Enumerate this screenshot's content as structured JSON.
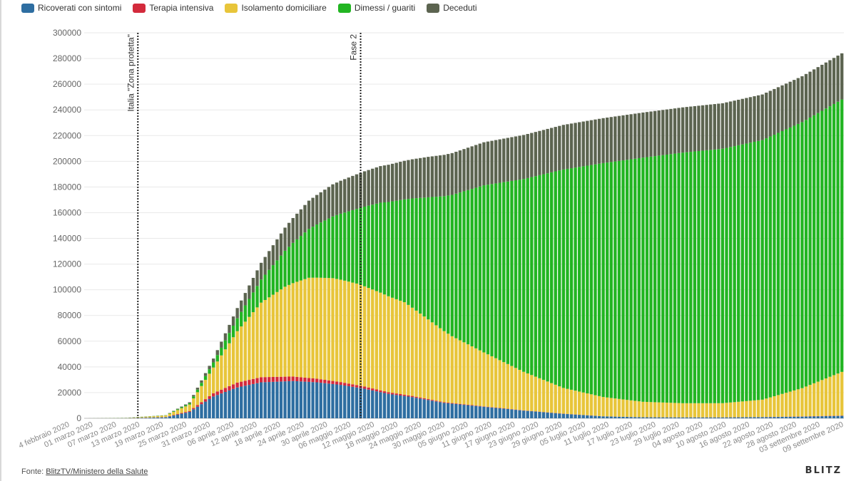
{
  "legend": {
    "items": [
      {
        "label": "Ricoverati con sintomi",
        "color": "#2e6ea1"
      },
      {
        "label": "Terapia intensiva",
        "color": "#d32a3c"
      },
      {
        "label": "Isolamento domiciliare",
        "color": "#e8c53a"
      },
      {
        "label": "Dimessi / guariti",
        "color": "#22b522"
      },
      {
        "label": "Deceduti",
        "color": "#5c6450"
      }
    ]
  },
  "source": {
    "prefix": "Fonte: ",
    "link_text": "BlitzTV/Ministero della Salute"
  },
  "logo": "BLITZ",
  "chart_data": {
    "type": "bar",
    "stacked": true,
    "x_tick_labels": [
      "4 febbraio 2020",
      "01 marzo 2020",
      "07 marzo 2020",
      "13 marzo 2020",
      "19 marzo 2020",
      "25 marzo 2020",
      "31 marzo 2020",
      "06 aprile 2020",
      "12 aprile 2020",
      "18 aprile 2020",
      "24 aprile 2020",
      "30 aprile 2020",
      "06 maggio 2020",
      "12 maggio 2020",
      "18 maggio 2020",
      "24 maggio 2020",
      "30 maggio 2020",
      "05 giugno 2020",
      "11 giugno 2020",
      "17 giugno 2020",
      "23 giugno 2020",
      "29 giugno 2020",
      "05 luglio 2020",
      "11 luglio 2020",
      "17 luglio 2020",
      "23 luglio 2020",
      "29 luglio 2020",
      "04 agosto 2020",
      "10 agosto 2020",
      "16 agosto 2020",
      "22 agosto 2020",
      "28 agosto 2020",
      "03 settembre 2020",
      "09 settembre 2020"
    ],
    "y_ticks": [
      0,
      20000,
      40000,
      60000,
      80000,
      100000,
      120000,
      140000,
      160000,
      180000,
      200000,
      220000,
      240000,
      260000,
      280000,
      300000
    ],
    "ylim": [
      0,
      300000
    ],
    "grid": true,
    "bar_count": 191,
    "anchors": {
      "ricoverati": [
        [
          0,
          0
        ],
        [
          10,
          100
        ],
        [
          20,
          800
        ],
        [
          26,
          5000
        ],
        [
          32,
          17000
        ],
        [
          38,
          24000
        ],
        [
          44,
          28000
        ],
        [
          52,
          29000
        ],
        [
          58,
          28000
        ],
        [
          64,
          26000
        ],
        [
          70,
          23000
        ],
        [
          76,
          19000
        ],
        [
          82,
          16500
        ],
        [
          90,
          12000
        ],
        [
          100,
          9000
        ],
        [
          110,
          6000
        ],
        [
          120,
          3500
        ],
        [
          130,
          1500
        ],
        [
          140,
          800
        ],
        [
          150,
          700
        ],
        [
          160,
          700
        ],
        [
          170,
          900
        ],
        [
          180,
          1300
        ],
        [
          190,
          1900
        ]
      ],
      "terapia": [
        [
          0,
          0
        ],
        [
          10,
          30
        ],
        [
          20,
          150
        ],
        [
          26,
          700
        ],
        [
          32,
          2500
        ],
        [
          38,
          3800
        ],
        [
          44,
          4000
        ],
        [
          52,
          3500
        ],
        [
          58,
          2800
        ],
        [
          64,
          2200
        ],
        [
          70,
          1700
        ],
        [
          76,
          1300
        ],
        [
          82,
          900
        ],
        [
          90,
          500
        ],
        [
          100,
          300
        ],
        [
          110,
          180
        ],
        [
          120,
          120
        ],
        [
          130,
          70
        ],
        [
          140,
          40
        ],
        [
          150,
          45
        ],
        [
          160,
          60
        ],
        [
          170,
          90
        ],
        [
          180,
          160
        ],
        [
          190,
          210
        ]
      ],
      "isolamento": [
        [
          0,
          0
        ],
        [
          10,
          100
        ],
        [
          20,
          1200
        ],
        [
          26,
          5000
        ],
        [
          32,
          20000
        ],
        [
          38,
          40000
        ],
        [
          44,
          58000
        ],
        [
          50,
          70000
        ],
        [
          56,
          78000
        ],
        [
          62,
          80000
        ],
        [
          68,
          79000
        ],
        [
          74,
          76000
        ],
        [
          80,
          72000
        ],
        [
          86,
          62000
        ],
        [
          92,
          52000
        ],
        [
          100,
          42000
        ],
        [
          110,
          30000
        ],
        [
          120,
          20000
        ],
        [
          130,
          15000
        ],
        [
          140,
          12000
        ],
        [
          150,
          11000
        ],
        [
          160,
          11000
        ],
        [
          170,
          13500
        ],
        [
          180,
          22000
        ],
        [
          190,
          34000
        ]
      ],
      "dimessi": [
        [
          0,
          0
        ],
        [
          20,
          200
        ],
        [
          26,
          1000
        ],
        [
          32,
          4000
        ],
        [
          38,
          10000
        ],
        [
          44,
          18000
        ],
        [
          50,
          28000
        ],
        [
          56,
          38000
        ],
        [
          62,
          48000
        ],
        [
          68,
          58000
        ],
        [
          74,
          70000
        ],
        [
          80,
          80000
        ],
        [
          86,
          95000
        ],
        [
          92,
          110000
        ],
        [
          100,
          130000
        ],
        [
          110,
          150000
        ],
        [
          120,
          170000
        ],
        [
          130,
          182000
        ],
        [
          140,
          190000
        ],
        [
          150,
          195000
        ],
        [
          160,
          198000
        ],
        [
          170,
          202000
        ],
        [
          180,
          207000
        ],
        [
          190,
          212000
        ]
      ],
      "deceduti": [
        [
          0,
          0
        ],
        [
          20,
          100
        ],
        [
          26,
          800
        ],
        [
          32,
          3000
        ],
        [
          38,
          8000
        ],
        [
          44,
          13000
        ],
        [
          50,
          18000
        ],
        [
          56,
          22000
        ],
        [
          62,
          25000
        ],
        [
          68,
          27000
        ],
        [
          74,
          28500
        ],
        [
          80,
          30000
        ],
        [
          86,
          31500
        ],
        [
          92,
          32500
        ],
        [
          100,
          33500
        ],
        [
          110,
          34300
        ],
        [
          120,
          34700
        ],
        [
          130,
          35000
        ],
        [
          140,
          35100
        ],
        [
          150,
          35200
        ],
        [
          160,
          35400
        ],
        [
          170,
          35500
        ],
        [
          180,
          35700
        ],
        [
          190,
          35900
        ]
      ]
    },
    "annotations": [
      {
        "label": "Italia \"Zona protetta\"",
        "bar_index": 13
      },
      {
        "label": "Fase 2",
        "bar_index": 69
      }
    ]
  }
}
